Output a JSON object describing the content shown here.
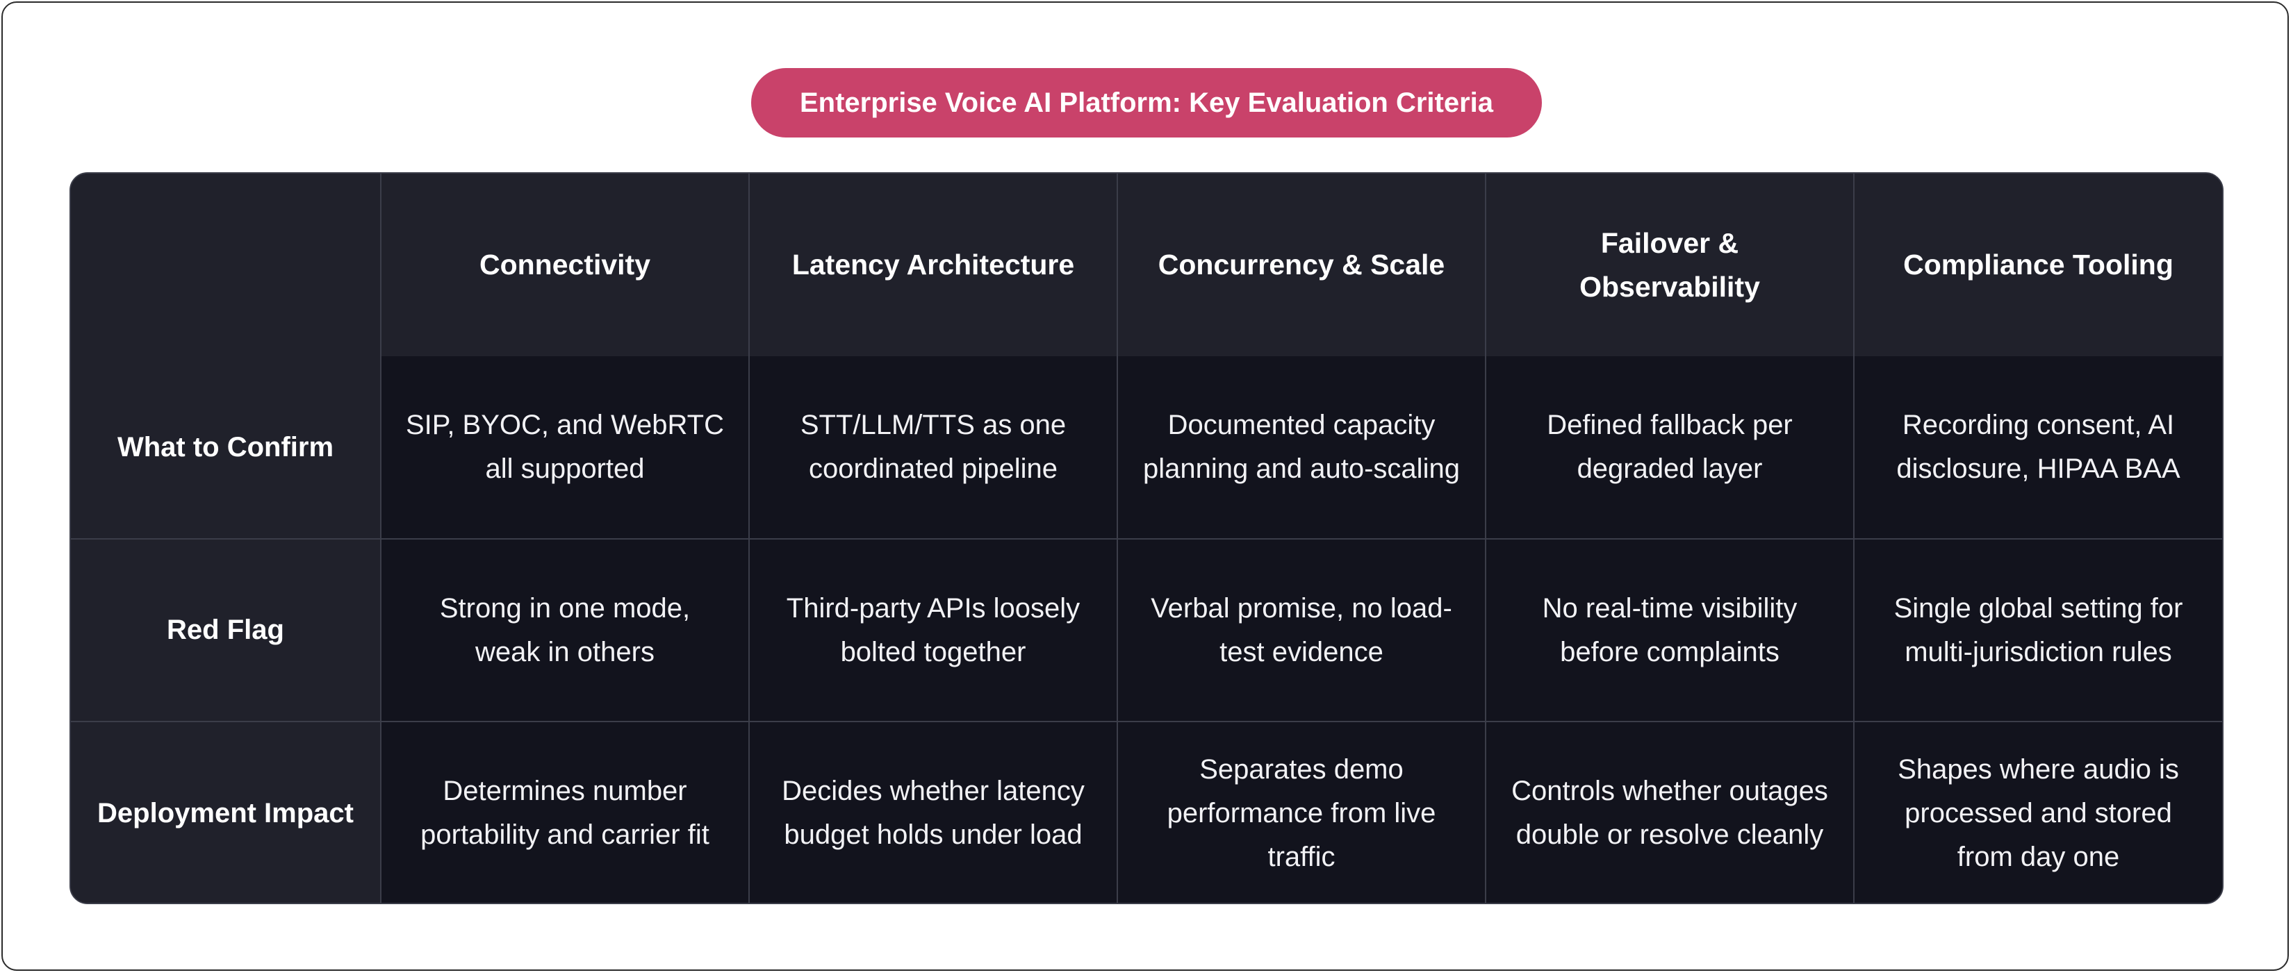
{
  "title": "Enterprise Voice AI Platform: Key Evaluation Criteria",
  "columns": [
    "",
    "Connectivity",
    "Latency Architecture",
    "Concurrency & Scale",
    "Failover & Observability",
    "Compliance Tooling"
  ],
  "rows": [
    {
      "label": "What to Confirm",
      "cells": [
        "SIP, BYOC, and WebRTC all supported",
        "STT/LLM/TTS as one coordinated pipeline",
        "Documented capacity planning and auto-scaling",
        "Defined fallback per degraded layer",
        "Recording consent, AI disclosure, HIPAA BAA"
      ]
    },
    {
      "label": "Red Flag",
      "cells": [
        "Strong in one mode, weak in others",
        "Third-party APIs loosely bolted together",
        "Verbal promise, no load-test evidence",
        "No real-time visibility before complaints",
        "Single global setting for multi-jurisdiction rules"
      ]
    },
    {
      "label": "Deployment Impact",
      "cells": [
        "Determines number portability and carrier fit",
        "Decides whether latency budget holds under load",
        "Separates demo performance from live traffic",
        "Controls whether outages double or resolve cleanly",
        "Shapes where audio is processed and stored from day one"
      ]
    }
  ],
  "colors": {
    "title_bg": "#c9426a",
    "header_bg": "#20212b",
    "cell_bg": "#12131d",
    "grid": "#3b3d49"
  }
}
